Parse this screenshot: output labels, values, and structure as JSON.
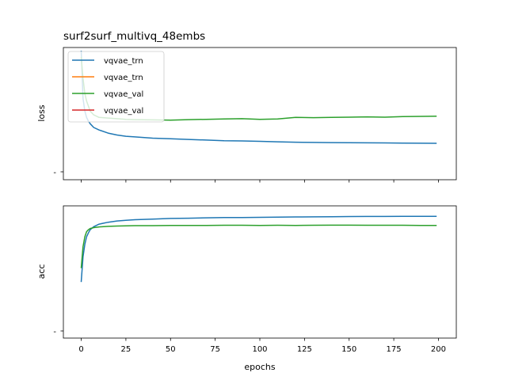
{
  "chart_data": [
    {
      "type": "line",
      "title": "surf2surf_multivq_48embs",
      "xlabel": "",
      "ylabel": "loss",
      "xlim": [
        -10,
        210
      ],
      "ylim": [
        0,
        1
      ],
      "x_ticks": [
        0,
        25,
        50,
        75,
        100,
        125,
        150,
        175,
        200
      ],
      "y_tick_labels": [
        "-"
      ],
      "legend_position": "upper left",
      "legend": [
        "vqvae_trn",
        "vqvae_trn",
        "vqvae_val",
        "vqvae_val"
      ],
      "series": [
        {
          "name": "vqvae_trn",
          "color": "#1f77b4",
          "x": [
            0,
            1,
            2,
            3,
            4,
            5,
            7,
            10,
            15,
            20,
            25,
            30,
            40,
            50,
            60,
            70,
            80,
            90,
            100,
            110,
            120,
            130,
            140,
            150,
            160,
            170,
            180,
            190,
            199
          ],
          "y": [
            1.0,
            0.62,
            0.52,
            0.47,
            0.44,
            0.42,
            0.39,
            0.37,
            0.345,
            0.33,
            0.32,
            0.315,
            0.305,
            0.3,
            0.295,
            0.29,
            0.285,
            0.283,
            0.28,
            0.276,
            0.273,
            0.271,
            0.27,
            0.269,
            0.268,
            0.267,
            0.266,
            0.265,
            0.264
          ]
        },
        {
          "name": "vqvae_trn",
          "color": "#ff7f0e",
          "x": [],
          "y": []
        },
        {
          "name": "vqvae_val",
          "color": "#2ca02c",
          "x": [
            0,
            1,
            2,
            3,
            4,
            5,
            7,
            10,
            15,
            20,
            25,
            30,
            40,
            50,
            60,
            70,
            80,
            90,
            100,
            110,
            120,
            130,
            140,
            150,
            160,
            170,
            180,
            190,
            199
          ],
          "y": [
            0.95,
            0.78,
            0.66,
            0.6,
            0.56,
            0.52,
            0.49,
            0.47,
            0.465,
            0.46,
            0.455,
            0.452,
            0.45,
            0.448,
            0.452,
            0.455,
            0.458,
            0.46,
            0.455,
            0.458,
            0.47,
            0.468,
            0.47,
            0.472,
            0.474,
            0.472,
            0.476,
            0.478,
            0.48
          ]
        },
        {
          "name": "vqvae_val",
          "color": "#d62728",
          "x": [],
          "y": []
        }
      ]
    },
    {
      "type": "line",
      "title": "",
      "xlabel": "epochs",
      "ylabel": "acc",
      "xlim": [
        -10,
        210
      ],
      "ylim": [
        0,
        1
      ],
      "x_ticks": [
        0,
        25,
        50,
        75,
        100,
        125,
        150,
        175,
        200
      ],
      "y_tick_labels": [
        "-"
      ],
      "series": [
        {
          "name": "vqvae_trn",
          "color": "#1f77b4",
          "x": [
            0,
            1,
            2,
            3,
            4,
            5,
            7,
            10,
            15,
            20,
            25,
            30,
            40,
            50,
            60,
            70,
            80,
            90,
            100,
            110,
            120,
            130,
            140,
            150,
            160,
            170,
            180,
            190,
            199
          ],
          "y": [
            0.42,
            0.62,
            0.72,
            0.78,
            0.81,
            0.835,
            0.86,
            0.88,
            0.895,
            0.905,
            0.91,
            0.915,
            0.92,
            0.925,
            0.927,
            0.93,
            0.932,
            0.933,
            0.934,
            0.936,
            0.937,
            0.938,
            0.939,
            0.94,
            0.941,
            0.941,
            0.942,
            0.942,
            0.942
          ]
        },
        {
          "name": "vqvae_val",
          "color": "#2ca02c",
          "x": [
            0,
            1,
            2,
            3,
            4,
            5,
            7,
            10,
            15,
            20,
            25,
            30,
            40,
            50,
            60,
            70,
            80,
            90,
            100,
            110,
            120,
            130,
            140,
            150,
            160,
            170,
            180,
            190,
            199
          ],
          "y": [
            0.53,
            0.7,
            0.78,
            0.82,
            0.835,
            0.845,
            0.852,
            0.858,
            0.862,
            0.865,
            0.866,
            0.868,
            0.868,
            0.869,
            0.87,
            0.87,
            0.871,
            0.871,
            0.87,
            0.871,
            0.87,
            0.871,
            0.872,
            0.872,
            0.871,
            0.871,
            0.871,
            0.87,
            0.87
          ]
        }
      ]
    }
  ]
}
